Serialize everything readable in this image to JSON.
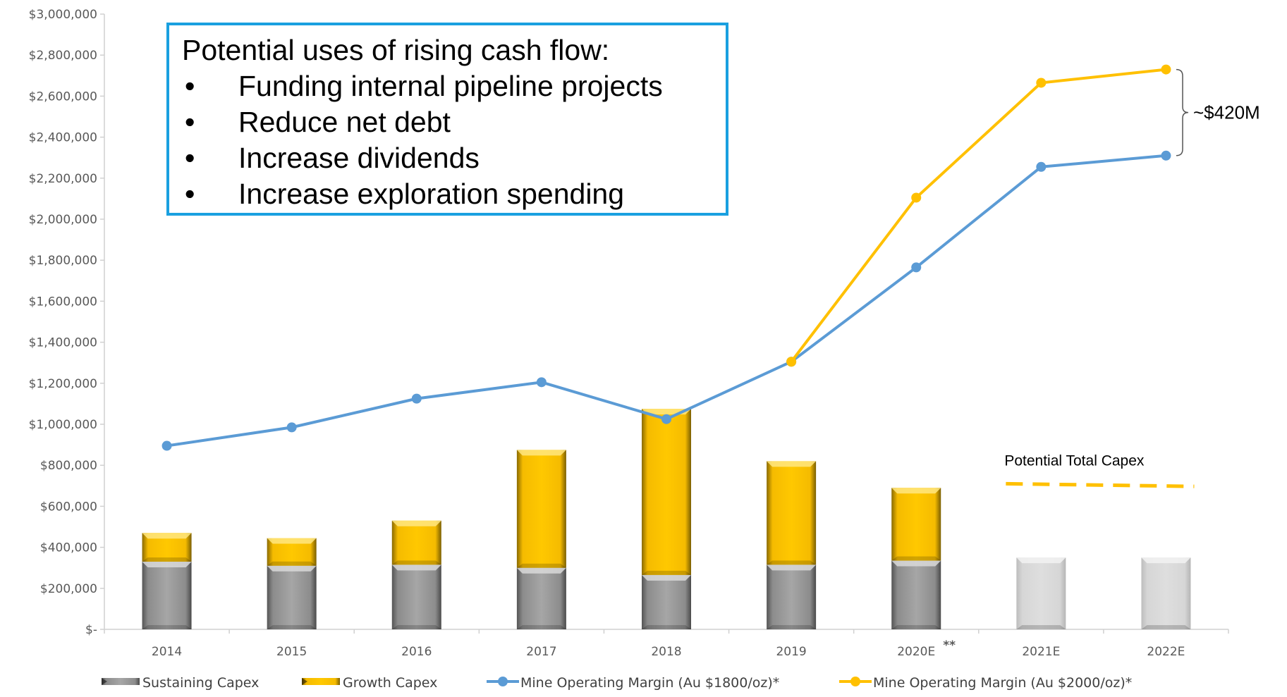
{
  "chart_data": {
    "type": "bar+line",
    "categories": [
      "2014",
      "2015",
      "2016",
      "2017",
      "2018",
      "2019",
      "2020E",
      "2021E",
      "2022E"
    ],
    "category_superscripts": {
      "2020E": "**"
    },
    "y_tick_labels": [
      "$-",
      "$200,000",
      "$400,000",
      "$600,000",
      "$800,000",
      "$1,000,000",
      "$1,200,000",
      "$1,400,000",
      "$1,600,000",
      "$1,800,000",
      "$2,000,000",
      "$2,200,000",
      "$2,400,000",
      "$2,600,000",
      "$2,800,000",
      "$3,000,000"
    ],
    "ylim": [
      0,
      3000000
    ],
    "y_tick_step": 200000,
    "grid": false,
    "legend_position": "bottom",
    "bar_series": [
      {
        "name": "Sustaining Capex",
        "color": "#9a9a9a",
        "values": [
          330000,
          310000,
          315000,
          300000,
          265000,
          315000,
          335000,
          null,
          null
        ]
      },
      {
        "name": "Growth Capex",
        "color": "#ffc000",
        "values": [
          140000,
          135000,
          215000,
          575000,
          810000,
          505000,
          355000,
          null,
          null
        ]
      }
    ],
    "potential_sustaining_values": [
      null,
      null,
      null,
      null,
      null,
      null,
      null,
      350000,
      350000
    ],
    "potential_color": "#d4d4d4",
    "line_series": [
      {
        "name": "Mine Operating Margin (Au $1800/oz)*",
        "color": "#5b9bd5",
        "values": [
          895000,
          985000,
          1125000,
          1205000,
          1025000,
          1305000,
          1765000,
          2255000,
          2310000
        ]
      },
      {
        "name": "Mine Operating Margin (Au $2000/oz)*",
        "color": "#ffc000",
        "values": [
          null,
          null,
          null,
          null,
          null,
          1305000,
          2105000,
          2665000,
          2730000
        ]
      }
    ],
    "dashed_line": {
      "label": "Potential Total Capex",
      "color": "#ffc000",
      "start": 710000,
      "end": 697000
    },
    "bracket_label": "~$420M"
  },
  "callout": {
    "title": "Potential uses of rising cash flow:",
    "bullet_char": "•",
    "bullets": [
      "Funding internal pipeline projects",
      "Reduce net debt",
      "Increase dividends",
      "Increase exploration spending"
    ]
  }
}
